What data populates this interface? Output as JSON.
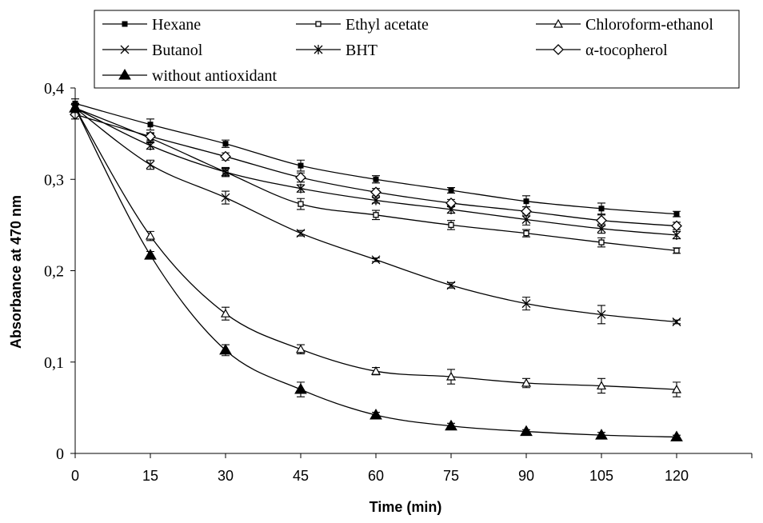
{
  "chart_data": {
    "type": "line",
    "xlabel": "Time (min)",
    "ylabel": "Absorbance at 470 nm",
    "x": [
      0,
      15,
      30,
      45,
      60,
      75,
      90,
      105,
      120
    ],
    "xlim": [
      0,
      135
    ],
    "ylim": [
      0,
      0.4
    ],
    "x_ticks": [
      "0",
      "15",
      "30",
      "45",
      "60",
      "75",
      "90",
      "105",
      "120"
    ],
    "y_ticks": [
      "0",
      "0,1",
      "0,2",
      "0,3",
      "0,4"
    ],
    "y_tick_values": [
      0,
      0.1,
      0.2,
      0.3,
      0.4
    ],
    "grid": false,
    "legend_position": "top",
    "series": [
      {
        "name": "Hexane",
        "marker": "filled-square",
        "color": "#000000",
        "values": [
          0.383,
          0.36,
          0.339,
          0.315,
          0.3,
          0.288,
          0.276,
          0.268,
          0.262
        ],
        "errors": [
          0.005,
          0.006,
          0.004,
          0.006,
          0.004,
          0.003,
          0.006,
          0.006,
          0.003
        ]
      },
      {
        "name": "Ethyl acetate",
        "marker": "open-square",
        "color": "#000000",
        "values": [
          0.378,
          0.345,
          0.308,
          0.273,
          0.261,
          0.25,
          0.241,
          0.231,
          0.222
        ],
        "errors": [
          0.005,
          0.005,
          0.004,
          0.006,
          0.005,
          0.005,
          0.004,
          0.005,
          0.003
        ]
      },
      {
        "name": "Chloroform-ethanol",
        "marker": "open-triangle",
        "color": "#000000",
        "values": [
          0.378,
          0.238,
          0.153,
          0.114,
          0.09,
          0.084,
          0.077,
          0.074,
          0.07
        ],
        "errors": [
          0.005,
          0.005,
          0.007,
          0.005,
          0.004,
          0.008,
          0.005,
          0.008,
          0.008
        ]
      },
      {
        "name": "Butanol",
        "marker": "x",
        "color": "#000000",
        "values": [
          0.378,
          0.316,
          0.28,
          0.241,
          0.212,
          0.184,
          0.164,
          0.152,
          0.144
        ],
        "errors": [
          0.005,
          0.005,
          0.007,
          0.003,
          0.002,
          0.003,
          0.007,
          0.01,
          0.002
        ]
      },
      {
        "name": "BHT",
        "marker": "asterisk",
        "color": "#000000",
        "values": [
          0.378,
          0.337,
          0.308,
          0.29,
          0.277,
          0.267,
          0.256,
          0.246,
          0.239
        ],
        "errors": [
          0.005,
          0.004,
          0.005,
          0.004,
          0.003,
          0.004,
          0.006,
          0.005,
          0.004
        ]
      },
      {
        "name": "α-tocopherol",
        "marker": "open-diamond",
        "color": "#000000",
        "values": [
          0.371,
          0.347,
          0.325,
          0.302,
          0.286,
          0.274,
          0.265,
          0.255,
          0.249
        ],
        "errors": [
          0.005,
          0.004,
          0.004,
          0.005,
          0.004,
          0.004,
          0.005,
          0.006,
          0.004
        ]
      },
      {
        "name": "without antioxidant",
        "marker": "filled-triangle",
        "color": "#000000",
        "values": [
          0.378,
          0.217,
          0.113,
          0.07,
          0.042,
          0.03,
          0.024,
          0.02,
          0.018
        ],
        "errors": [
          0.005,
          0.004,
          0.006,
          0.008,
          0.003,
          0.003,
          0.002,
          0.003,
          0.002
        ]
      }
    ]
  }
}
